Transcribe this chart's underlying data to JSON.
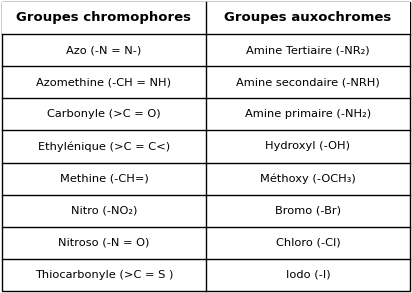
{
  "col1_header": "Groupes chromophores",
  "col2_header": "Groupes auxochromes",
  "col1_data": [
    "Azo (-N = N-)",
    "Azomethine (-CH = NH)",
    "Carbonyle (>C = O)",
    "Ethylénique (>C = C<)",
    "Methine (-CH=)",
    "Nitro (-NO₂)",
    "Nitroso (-N = O)",
    "Thiocarbonyle (>C = S )"
  ],
  "col2_data": [
    "Amine Tertiaire (-NR₂)",
    "Amine secondaire (-NRH)",
    "Amine primaire (-NH₂)",
    "Hydroxyl (-OH)",
    "Méthoxy (-OCH₃)",
    "Bromo (-Br)",
    "Chloro (-Cl)",
    "Iodo (-I)"
  ],
  "bg_color": "#ffffff",
  "border_color": "#000000",
  "text_color": "#000000",
  "header_fontsize": 9.5,
  "cell_fontsize": 8.2,
  "col_split": 0.5
}
